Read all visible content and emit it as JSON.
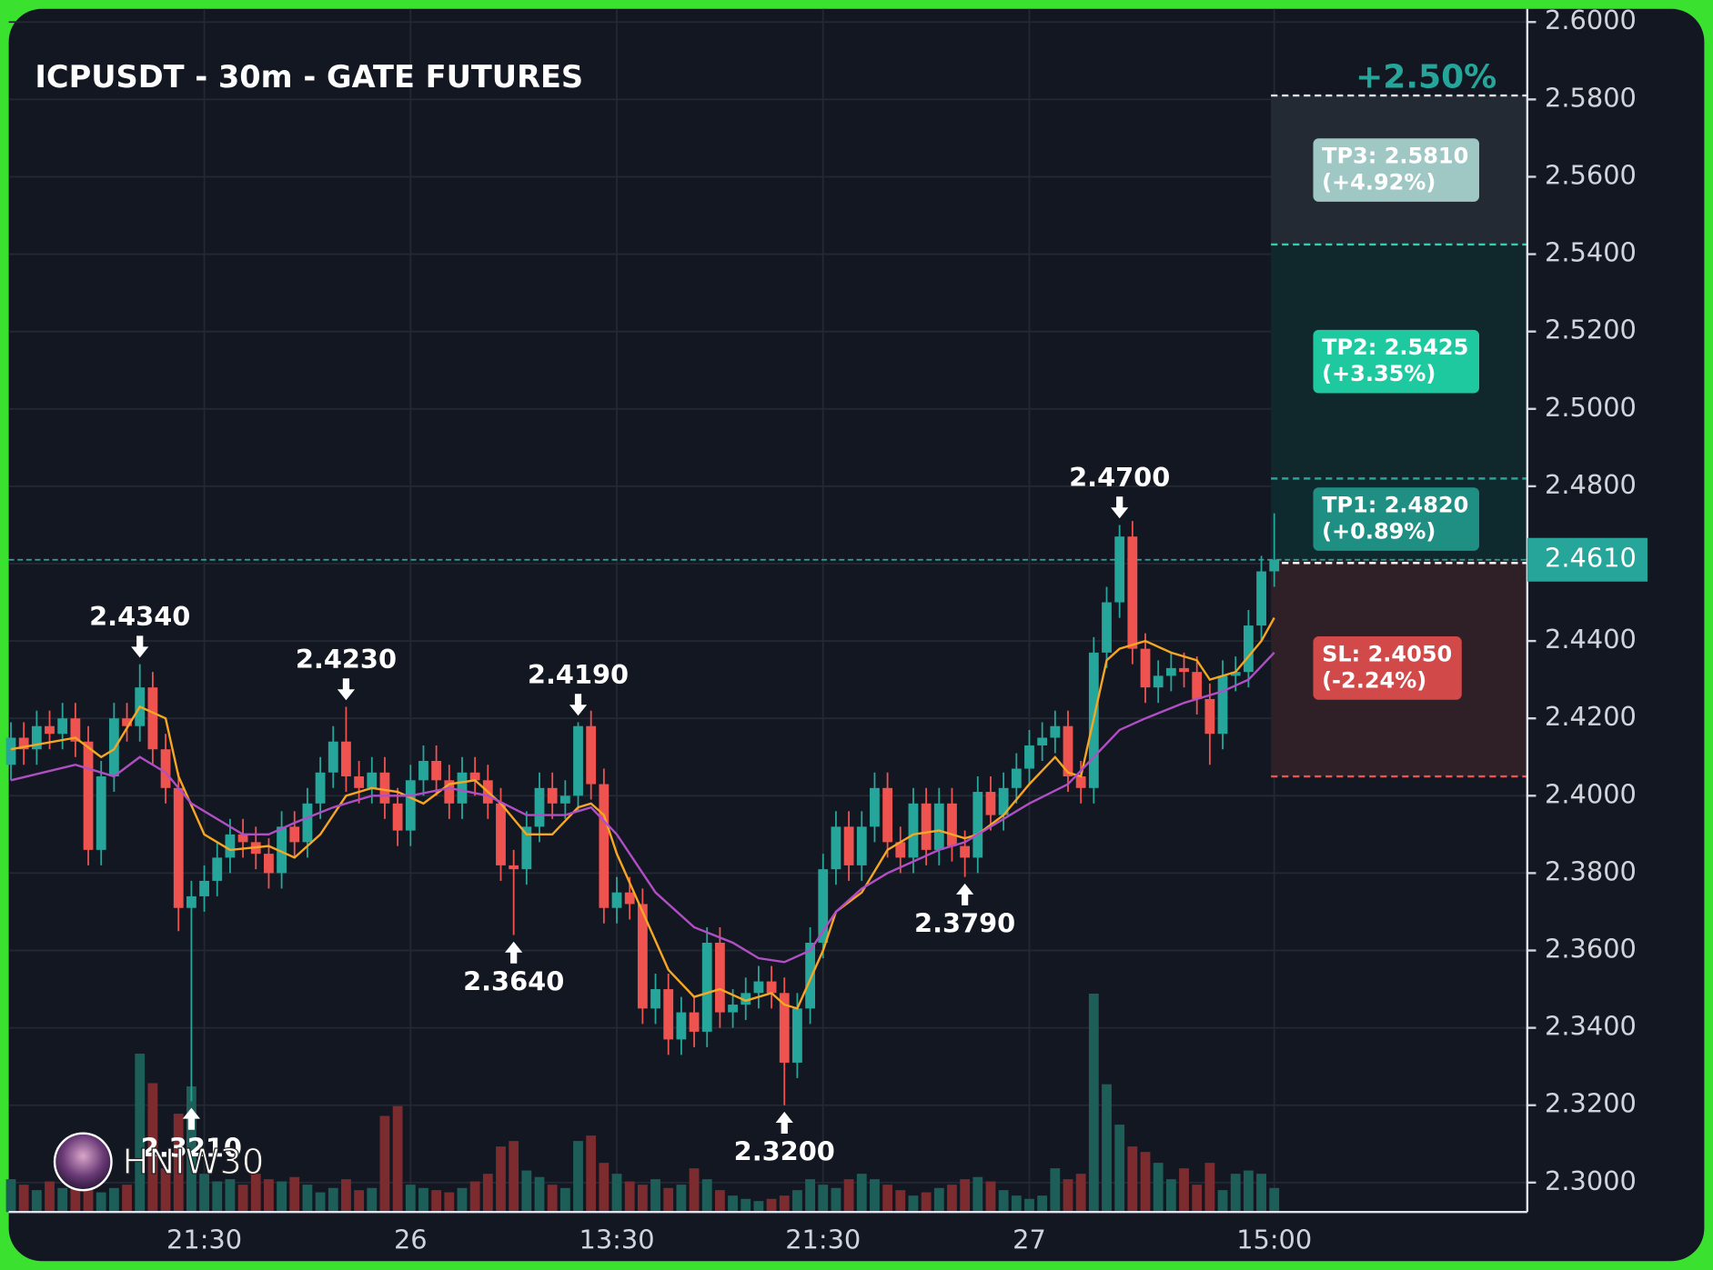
{
  "chart_data": {
    "type": "candlestick",
    "title": "ICPUSDT - 30m - GATE FUTURES",
    "change_label": "+2.50%",
    "watermark": "HNIW30",
    "categories": [
      null,
      null,
      null,
      null,
      null,
      null,
      null,
      null,
      null,
      null,
      null,
      null,
      null,
      null,
      null,
      "21:30",
      null,
      null,
      null,
      null,
      null,
      null,
      null,
      null,
      null,
      null,
      null,
      null,
      null,
      null,
      null,
      "26",
      null,
      null,
      null,
      null,
      null,
      null,
      null,
      null,
      null,
      null,
      null,
      null,
      null,
      null,
      null,
      "13:30",
      null,
      null,
      null,
      null,
      null,
      null,
      null,
      null,
      null,
      null,
      null,
      null,
      null,
      null,
      null,
      "21:30",
      null,
      null,
      null,
      null,
      null,
      null,
      null,
      null,
      null,
      null,
      null,
      null,
      null,
      null,
      null,
      "27",
      null,
      null,
      null,
      null,
      null,
      null,
      null,
      null,
      null,
      null,
      null,
      null,
      null,
      null,
      null,
      null,
      null,
      null,
      "15:00"
    ],
    "open": [
      2.408,
      2.415,
      2.412,
      2.418,
      2.416,
      2.42,
      2.414,
      2.386,
      2.405,
      2.42,
      2.418,
      2.428,
      2.412,
      2.402,
      2.371,
      2.374,
      2.378,
      2.384,
      2.39,
      2.388,
      2.385,
      2.38,
      2.392,
      2.388,
      2.398,
      2.406,
      2.414,
      2.405,
      2.402,
      2.406,
      2.398,
      2.391,
      2.404,
      2.409,
      2.404,
      2.398,
      2.406,
      2.404,
      2.398,
      2.382,
      2.381,
      2.392,
      2.402,
      2.398,
      2.4,
      2.418,
      2.403,
      2.371,
      2.375,
      2.372,
      2.345,
      2.35,
      2.337,
      2.344,
      2.339,
      2.362,
      2.344,
      2.346,
      2.349,
      2.352,
      2.349,
      2.331,
      2.345,
      2.362,
      2.381,
      2.392,
      2.382,
      2.392,
      2.402,
      2.388,
      2.384,
      2.398,
      2.386,
      2.398,
      2.387,
      2.384,
      2.401,
      2.395,
      2.402,
      2.407,
      2.413,
      2.415,
      2.418,
      2.405,
      2.402,
      2.437,
      2.45,
      2.467,
      2.438,
      2.428,
      2.431,
      2.433,
      2.432,
      2.425,
      2.416,
      2.431,
      2.432,
      2.444,
      2.458
    ],
    "high": [
      2.419,
      2.419,
      2.422,
      2.422,
      2.424,
      2.424,
      2.418,
      2.409,
      2.424,
      2.424,
      2.434,
      2.432,
      2.416,
      2.406,
      2.378,
      2.382,
      2.388,
      2.394,
      2.394,
      2.392,
      2.389,
      2.396,
      2.396,
      2.402,
      2.41,
      2.418,
      2.423,
      2.409,
      2.41,
      2.41,
      2.402,
      2.408,
      2.413,
      2.413,
      2.408,
      2.41,
      2.41,
      2.408,
      2.402,
      2.386,
      2.396,
      2.406,
      2.406,
      2.404,
      2.419,
      2.422,
      2.407,
      2.379,
      2.379,
      2.376,
      2.354,
      2.354,
      2.348,
      2.348,
      2.366,
      2.366,
      2.35,
      2.353,
      2.356,
      2.356,
      2.353,
      2.349,
      2.366,
      2.385,
      2.396,
      2.396,
      2.396,
      2.406,
      2.406,
      2.392,
      2.402,
      2.402,
      2.402,
      2.402,
      2.391,
      2.405,
      2.405,
      2.406,
      2.411,
      2.417,
      2.419,
      2.422,
      2.422,
      2.409,
      2.441,
      2.454,
      2.47,
      2.471,
      2.442,
      2.435,
      2.437,
      2.437,
      2.436,
      2.429,
      2.435,
      2.436,
      2.448,
      2.462,
      2.473
    ],
    "low": [
      2.404,
      2.408,
      2.408,
      2.412,
      2.412,
      2.41,
      2.382,
      2.382,
      2.401,
      2.414,
      2.414,
      2.408,
      2.398,
      2.365,
      2.321,
      2.37,
      2.374,
      2.38,
      2.384,
      2.381,
      2.376,
      2.376,
      2.384,
      2.384,
      2.394,
      2.402,
      2.401,
      2.398,
      2.398,
      2.394,
      2.387,
      2.387,
      2.4,
      2.4,
      2.394,
      2.394,
      2.4,
      2.394,
      2.378,
      2.364,
      2.377,
      2.388,
      2.394,
      2.394,
      2.396,
      2.399,
      2.367,
      2.367,
      2.368,
      2.341,
      2.341,
      2.333,
      2.333,
      2.335,
      2.335,
      2.34,
      2.34,
      2.342,
      2.345,
      2.345,
      2.32,
      2.327,
      2.341,
      2.358,
      2.377,
      2.378,
      2.378,
      2.388,
      2.384,
      2.38,
      2.38,
      2.382,
      2.382,
      2.383,
      2.379,
      2.38,
      2.391,
      2.391,
      2.398,
      2.403,
      2.409,
      2.411,
      2.401,
      2.398,
      2.398,
      2.433,
      2.446,
      2.434,
      2.424,
      2.424,
      2.427,
      2.428,
      2.421,
      2.408,
      2.412,
      2.427,
      2.428,
      2.44,
      2.454
    ],
    "close": [
      2.415,
      2.412,
      2.418,
      2.416,
      2.42,
      2.414,
      2.386,
      2.405,
      2.42,
      2.418,
      2.428,
      2.412,
      2.402,
      2.371,
      2.374,
      2.378,
      2.384,
      2.39,
      2.388,
      2.385,
      2.38,
      2.392,
      2.388,
      2.398,
      2.406,
      2.414,
      2.405,
      2.402,
      2.406,
      2.398,
      2.391,
      2.404,
      2.409,
      2.404,
      2.398,
      2.406,
      2.404,
      2.398,
      2.382,
      2.381,
      2.392,
      2.402,
      2.398,
      2.4,
      2.418,
      2.403,
      2.371,
      2.375,
      2.372,
      2.345,
      2.35,
      2.337,
      2.344,
      2.339,
      2.362,
      2.344,
      2.346,
      2.349,
      2.352,
      2.349,
      2.331,
      2.345,
      2.362,
      2.381,
      2.392,
      2.382,
      2.392,
      2.402,
      2.388,
      2.384,
      2.398,
      2.386,
      2.398,
      2.387,
      2.384,
      2.401,
      2.395,
      2.402,
      2.407,
      2.413,
      2.415,
      2.418,
      2.405,
      2.402,
      2.437,
      2.45,
      2.467,
      2.438,
      2.428,
      2.431,
      2.433,
      2.432,
      2.425,
      2.416,
      2.431,
      2.432,
      2.444,
      2.458,
      2.461
    ],
    "volume": [
      30,
      25,
      20,
      28,
      22,
      30,
      35,
      18,
      22,
      25,
      145,
      118,
      40,
      90,
      115,
      35,
      28,
      30,
      25,
      35,
      30,
      28,
      32,
      25,
      18,
      22,
      30,
      20,
      22,
      88,
      97,
      25,
      22,
      20,
      18,
      22,
      28,
      35,
      60,
      65,
      38,
      32,
      25,
      22,
      65,
      70,
      45,
      35,
      28,
      25,
      30,
      22,
      25,
      40,
      30,
      20,
      15,
      12,
      10,
      12,
      15,
      20,
      30,
      25,
      22,
      30,
      35,
      30,
      25,
      20,
      15,
      18,
      22,
      25,
      30,
      32,
      28,
      20,
      15,
      12,
      15,
      40,
      30,
      35,
      200,
      117,
      80,
      60,
      55,
      45,
      30,
      40,
      25,
      45,
      20,
      35,
      38,
      35,
      22
    ],
    "up_color": "#26a69a",
    "down_color": "#ef5350",
    "up_volume_color": "#1d5f58",
    "down_volume_color": "#7c2b2e",
    "lines": [
      {
        "color": "#f5a623",
        "x": [
          0,
          5,
          7,
          8,
          10,
          12,
          13,
          15,
          17,
          20,
          22,
          24,
          26,
          28,
          30,
          32,
          34,
          36,
          38,
          40,
          42,
          44,
          45,
          46,
          47,
          49,
          51,
          53,
          55,
          57,
          59,
          60,
          61,
          63,
          64,
          66,
          68,
          70,
          72,
          74,
          75,
          77,
          79,
          81,
          82,
          83,
          84,
          85,
          86,
          88,
          90,
          92,
          93,
          95,
          97,
          98
        ],
        "values": [
          2.412,
          2.415,
          2.41,
          2.412,
          2.423,
          2.42,
          2.405,
          2.39,
          2.386,
          2.387,
          2.384,
          2.39,
          2.4,
          2.402,
          2.401,
          2.398,
          2.403,
          2.404,
          2.398,
          2.39,
          2.39,
          2.397,
          2.398,
          2.395,
          2.385,
          2.37,
          2.355,
          2.348,
          2.35,
          2.347,
          2.349,
          2.346,
          2.345,
          2.36,
          2.37,
          2.375,
          2.386,
          2.39,
          2.391,
          2.389,
          2.39,
          2.395,
          2.403,
          2.41,
          2.406,
          2.405,
          2.42,
          2.435,
          2.438,
          2.44,
          2.437,
          2.435,
          2.43,
          2.432,
          2.44,
          2.446
        ]
      },
      {
        "color": "#b04fc4",
        "x": [
          0,
          5,
          8,
          10,
          12,
          14,
          18,
          20,
          22,
          25,
          28,
          31,
          34,
          37,
          40,
          43,
          45,
          47,
          50,
          53,
          56,
          58,
          60,
          62,
          64,
          66,
          68,
          70,
          72,
          74,
          76,
          79,
          82,
          84,
          86,
          88,
          91,
          94,
          96,
          98
        ],
        "values": [
          2.404,
          2.408,
          2.405,
          2.41,
          2.406,
          2.398,
          2.39,
          2.39,
          2.393,
          2.397,
          2.4,
          2.4,
          2.402,
          2.4,
          2.395,
          2.395,
          2.397,
          2.39,
          2.375,
          2.366,
          2.362,
          2.358,
          2.357,
          2.36,
          2.37,
          2.376,
          2.38,
          2.383,
          2.386,
          2.388,
          2.392,
          2.398,
          2.403,
          2.41,
          2.417,
          2.42,
          2.424,
          2.427,
          2.43,
          2.437
        ]
      }
    ],
    "annotations": [
      {
        "index": 10,
        "value": 2.434,
        "label": "2.4340",
        "side": "high"
      },
      {
        "index": 14,
        "value": 2.321,
        "label": "2.3210",
        "side": "low"
      },
      {
        "index": 26,
        "value": 2.423,
        "label": "2.4230",
        "side": "high"
      },
      {
        "index": 39,
        "value": 2.364,
        "label": "2.3640",
        "side": "low"
      },
      {
        "index": 44,
        "value": 2.419,
        "label": "2.4190",
        "side": "high"
      },
      {
        "index": 60,
        "value": 2.32,
        "label": "2.3200",
        "side": "low"
      },
      {
        "index": 74,
        "value": 2.379,
        "label": "2.3790",
        "side": "low"
      },
      {
        "index": 86,
        "value": 2.47,
        "label": "2.4700",
        "side": "high"
      }
    ],
    "price_tag": {
      "value": 2.461,
      "label": "2.4610",
      "color": "#26a69a"
    },
    "levels": [
      {
        "label": [
          "TP3: 2.5810",
          "(+4.92%)"
        ],
        "value": 2.581,
        "color": "#9fc7c4",
        "zone": "#232a33",
        "line": "#e0e3eb"
      },
      {
        "label": [
          "TP2: 2.5425",
          "(+3.35%)"
        ],
        "value": 2.5425,
        "color": "#1ec9a0",
        "zone": "#10272b",
        "line": "#2fd1b0"
      },
      {
        "label": [
          "TP1: 2.4820",
          "(+0.89%)"
        ],
        "value": 2.482,
        "color": "#1f8f84",
        "zone": "#0f2a2f",
        "line": "#26a69a"
      },
      {
        "label": [
          "SL: 2.4050",
          "(-2.24%)"
        ],
        "value": 2.405,
        "color": "#d2494a",
        "zone": "#2f1f26",
        "line": "#ef5350"
      }
    ],
    "ylim": [
      2.2924,
      2.6034
    ],
    "yticks": [
      {
        "value": 2.6,
        "label": "2.6000"
      },
      {
        "value": 2.58,
        "label": "2.5800"
      },
      {
        "value": 2.56,
        "label": "2.5600"
      },
      {
        "value": 2.54,
        "label": "2.5400"
      },
      {
        "value": 2.52,
        "label": "2.5200"
      },
      {
        "value": 2.5,
        "label": "2.5000"
      },
      {
        "value": 2.48,
        "label": "2.4800"
      },
      {
        "value": 2.46,
        "label": "2.4600"
      },
      {
        "value": 2.44,
        "label": "2.4400"
      },
      {
        "value": 2.42,
        "label": "2.4200"
      },
      {
        "value": 2.4,
        "label": "2.4000"
      },
      {
        "value": 2.38,
        "label": "2.3800"
      },
      {
        "value": 2.36,
        "label": "2.3600"
      },
      {
        "value": 2.34,
        "label": "2.3400"
      },
      {
        "value": 2.32,
        "label": "2.3200"
      },
      {
        "value": 2.3,
        "label": "2.3000"
      }
    ],
    "grid": true
  }
}
